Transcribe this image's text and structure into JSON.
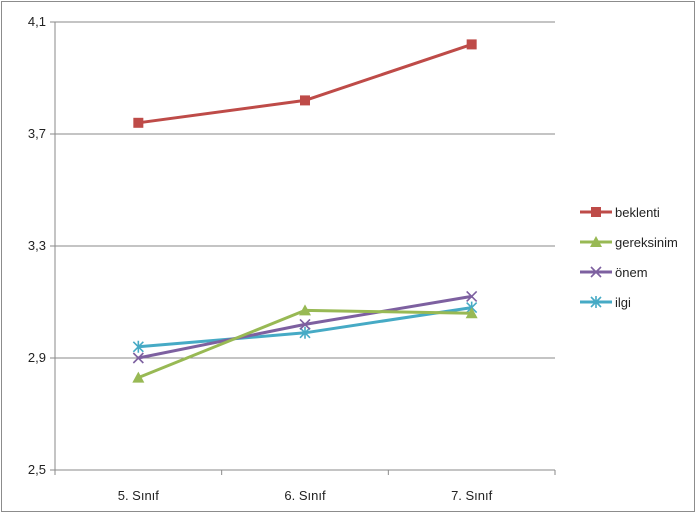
{
  "chart_data": {
    "type": "line",
    "categories": [
      "5. Sınıf",
      "6. Sınıf",
      "7. Sınıf"
    ],
    "ylim": [
      2.5,
      4.1
    ],
    "yticks": [
      "2,5",
      "2,9",
      "3,3",
      "3,7",
      "4,1"
    ],
    "ytick_values": [
      2.5,
      2.9,
      3.3,
      3.7,
      4.1
    ],
    "grid": true,
    "legend": "right",
    "series": [
      {
        "name": "beklenti",
        "values": [
          3.74,
          3.82,
          4.02
        ],
        "color": "#be4b48",
        "marker": "square"
      },
      {
        "name": "gereksinim",
        "values": [
          2.83,
          3.07,
          3.06
        ],
        "color": "#98b954",
        "marker": "triangle"
      },
      {
        "name": "önem",
        "values": [
          2.9,
          3.02,
          3.12
        ],
        "color": "#7d60a0",
        "marker": "x"
      },
      {
        "name": "ilgi",
        "values": [
          2.94,
          2.99,
          3.08
        ],
        "color": "#46aac5",
        "marker": "star"
      }
    ]
  }
}
